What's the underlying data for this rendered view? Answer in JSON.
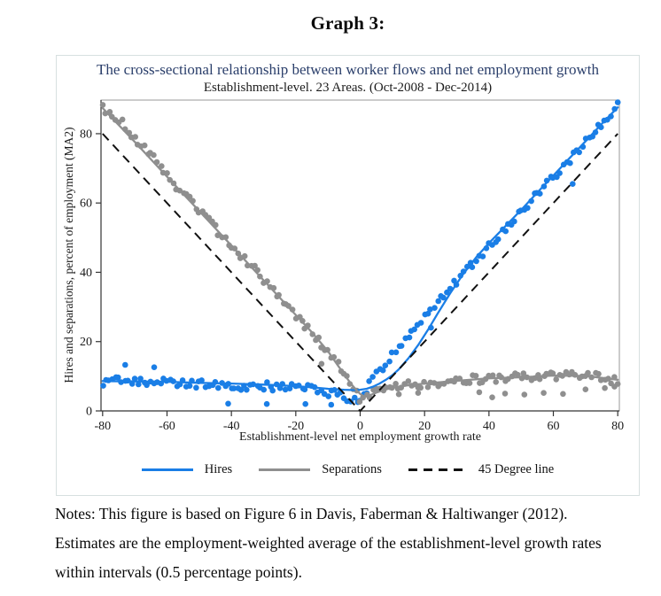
{
  "heading": "Graph 3:",
  "notes": {
    "lines": [
      "Notes: This figure is based on Figure 6 in Davis, Faberman & Haltiwanger (2012).",
      "Estimates are the employment-weighted average of the establishment-level growth rates",
      "within intervals (0.5 percentage points)."
    ]
  },
  "chart_data": {
    "type": "scatter",
    "title": "The cross-sectional relationship between worker flows and net employment growth",
    "subtitle": "Establishment-level. 23 Areas. (Oct-2008 - Dec-2014)",
    "xlabel": "Establishment-level net employment growth rate",
    "ylabel": "Hires and separations, percent of employment (MA2)",
    "xlim": [
      -80.5,
      80.5
    ],
    "ylim": [
      0,
      89.7
    ],
    "xticks": [
      -80,
      -60,
      -40,
      -20,
      0,
      20,
      40,
      60,
      80
    ],
    "yticks": [
      0,
      20,
      40,
      60,
      80
    ],
    "grid": false,
    "legend_position": "bottom",
    "colors": {
      "axis": "#333333",
      "box": "#999999",
      "tick_label": "#1a1a1a",
      "title": "#2b3f6b",
      "figure_border": "#d7e0e0"
    },
    "scatter": {
      "xstart": -80,
      "xend": 80,
      "step": 1,
      "jitter": 1.25,
      "xjitter": 0.3,
      "ymin": 1.0,
      "radius": 3.3,
      "seed": 97
    },
    "series": [
      {
        "name": "Hires",
        "color": "#1a7ee6",
        "type": "scatter+line",
        "trend": [
          [
            -80,
            8.3
          ],
          [
            -75,
            8.9
          ],
          [
            -70,
            8.4
          ],
          [
            -65,
            8.7
          ],
          [
            -60,
            8.2
          ],
          [
            -55,
            7.8
          ],
          [
            -50,
            7.7
          ],
          [
            -45,
            7.4
          ],
          [
            -40,
            7.3
          ],
          [
            -35,
            7.3
          ],
          [
            -30,
            7.2
          ],
          [
            -25,
            7.0
          ],
          [
            -20,
            6.8
          ],
          [
            -15,
            6.2
          ],
          [
            -10,
            5.4
          ],
          [
            -7,
            4.6
          ],
          [
            -5,
            4.0
          ],
          [
            -3,
            3.4
          ],
          [
            -2,
            3.2
          ],
          [
            -1,
            3.3
          ],
          [
            0,
            4.0
          ],
          [
            1,
            5.0
          ],
          [
            2,
            6.3
          ],
          [
            3,
            7.8
          ],
          [
            4,
            9.0
          ],
          [
            5,
            10.3
          ],
          [
            7,
            12.5
          ],
          [
            10,
            16.0
          ],
          [
            13,
            19.5
          ],
          [
            16,
            23.0
          ],
          [
            20,
            27.3
          ],
          [
            25,
            32.4
          ],
          [
            30,
            37.5
          ],
          [
            35,
            42.6
          ],
          [
            40,
            47.6
          ],
          [
            45,
            52.6
          ],
          [
            50,
            57.6
          ],
          [
            55,
            62.6
          ],
          [
            60,
            67.7
          ],
          [
            65,
            72.7
          ],
          [
            70,
            77.7
          ],
          [
            75,
            82.8
          ],
          [
            80,
            87.8
          ]
        ],
        "line": [
          [
            -80,
            8.6
          ],
          [
            -70,
            8.5
          ],
          [
            -60,
            8.4
          ],
          [
            -50,
            8.1
          ],
          [
            -40,
            7.9
          ],
          [
            -30,
            7.6
          ],
          [
            -25,
            7.4
          ],
          [
            -20,
            7.1
          ],
          [
            -15,
            6.8
          ],
          [
            -10,
            6.4
          ],
          [
            -5,
            6.1
          ],
          [
            -2,
            6.0
          ],
          [
            0,
            6.1
          ],
          [
            2,
            6.4
          ],
          [
            4,
            7.0
          ],
          [
            6,
            7.9
          ],
          [
            8,
            9.0
          ],
          [
            10,
            10.3
          ],
          [
            12,
            12.0
          ],
          [
            15,
            15.2
          ],
          [
            18,
            19.0
          ],
          [
            21,
            23.3
          ],
          [
            24,
            28.0
          ],
          [
            28,
            34.0
          ],
          [
            32,
            39.5
          ],
          [
            36,
            44.3
          ],
          [
            40,
            48.4
          ],
          [
            45,
            53.2
          ],
          [
            50,
            58.0
          ],
          [
            55,
            63.0
          ],
          [
            60,
            67.9
          ],
          [
            65,
            72.9
          ],
          [
            70,
            77.8
          ],
          [
            75,
            82.8
          ],
          [
            80,
            87.6
          ]
        ],
        "outliers": [
          [
            -73,
            13.3
          ],
          [
            -64,
            12.6
          ],
          [
            -41,
            2.1
          ],
          [
            -29,
            2.0
          ],
          [
            -17,
            2.0
          ],
          [
            -9,
            1.8
          ],
          [
            22,
            24.0
          ],
          [
            66,
            65.5
          ]
        ]
      },
      {
        "name": "Separations",
        "color": "#8f8f8f",
        "type": "scatter+line",
        "trend": [
          [
            -80,
            87.6
          ],
          [
            -75,
            84.0
          ],
          [
            -70,
            78.5
          ],
          [
            -65,
            74.0
          ],
          [
            -60,
            68.0
          ],
          [
            -55,
            63.0
          ],
          [
            -50,
            57.8
          ],
          [
            -45,
            52.8
          ],
          [
            -40,
            47.8
          ],
          [
            -35,
            42.8
          ],
          [
            -30,
            37.8
          ],
          [
            -25,
            32.8
          ],
          [
            -20,
            27.8
          ],
          [
            -15,
            22.6
          ],
          [
            -10,
            17.0
          ],
          [
            -7,
            13.0
          ],
          [
            -5,
            10.5
          ],
          [
            -3,
            7.8
          ],
          [
            -2,
            6.5
          ],
          [
            -1,
            5.2
          ],
          [
            0,
            3.8
          ],
          [
            1,
            3.2
          ],
          [
            2,
            3.5
          ],
          [
            3,
            4.2
          ],
          [
            5,
            5.5
          ],
          [
            8,
            6.3
          ],
          [
            10,
            6.8
          ],
          [
            15,
            7.4
          ],
          [
            20,
            7.9
          ],
          [
            25,
            8.2
          ],
          [
            30,
            8.7
          ],
          [
            35,
            9.1
          ],
          [
            40,
            9.4
          ],
          [
            45,
            9.5
          ],
          [
            50,
            9.7
          ],
          [
            55,
            10.0
          ],
          [
            60,
            10.3
          ],
          [
            65,
            10.4
          ],
          [
            70,
            10.1
          ],
          [
            75,
            9.7
          ],
          [
            80,
            8.7
          ]
        ],
        "line": [
          [
            -80,
            87.4
          ],
          [
            -70,
            77.6
          ],
          [
            -60,
            67.6
          ],
          [
            -50,
            57.7
          ],
          [
            -40,
            47.7
          ],
          [
            -30,
            37.7
          ],
          [
            -20,
            27.7
          ],
          [
            -15,
            22.7
          ],
          [
            -10,
            17.2
          ],
          [
            -7,
            13.2
          ],
          [
            -5,
            10.6
          ],
          [
            -3,
            8.0
          ],
          [
            -1,
            5.8
          ],
          [
            0,
            4.9
          ],
          [
            1,
            4.3
          ],
          [
            2,
            4.2
          ],
          [
            3,
            4.5
          ],
          [
            5,
            5.3
          ],
          [
            8,
            6.2
          ],
          [
            10,
            6.7
          ],
          [
            15,
            7.4
          ],
          [
            20,
            7.9
          ],
          [
            30,
            8.7
          ],
          [
            40,
            9.4
          ],
          [
            50,
            9.7
          ],
          [
            60,
            10.2
          ],
          [
            70,
            10.1
          ],
          [
            80,
            9.0
          ]
        ],
        "outliers": [
          [
            -12,
            13.6
          ],
          [
            12,
            4.8
          ],
          [
            18,
            5.2
          ],
          [
            37,
            5.4
          ],
          [
            41,
            3.9
          ],
          [
            45,
            5.0
          ],
          [
            51,
            4.7
          ],
          [
            57,
            5.2
          ],
          [
            63,
            4.9
          ],
          [
            70,
            6.2
          ],
          [
            76,
            6.6
          ],
          [
            79,
            7.0
          ]
        ]
      },
      {
        "name": "45 Degree line",
        "color": "#111111",
        "type": "dashed",
        "line": [
          [
            -80,
            80
          ],
          [
            0,
            0
          ],
          [
            80,
            80
          ]
        ]
      }
    ]
  }
}
